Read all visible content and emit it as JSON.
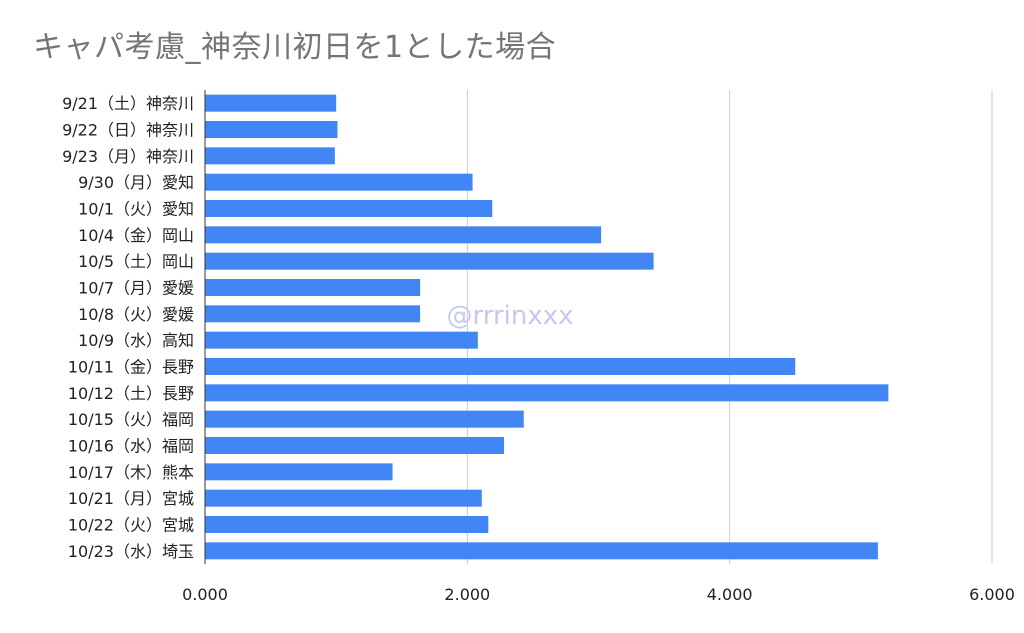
{
  "chart_data": {
    "type": "bar",
    "orientation": "horizontal",
    "title": "キャパ考慮_神奈川初日を1とした場合",
    "watermark": "@rrrinxxx",
    "categories": [
      "9/21（土）神奈川",
      "9/22（日）神奈川",
      "9/23（月）神奈川",
      "9/30（月）愛知",
      "10/1（火）愛知",
      "10/4（金）岡山",
      "10/5（土）岡山",
      "10/7（月）愛媛",
      "10/8（火）愛媛",
      "10/9（水）高知",
      "10/11（金）長野",
      "10/12（土）長野",
      "10/15（火）福岡",
      "10/16（水）福岡",
      "10/17（木）熊本",
      "10/21（月）宮城",
      "10/22（火）宮城",
      "10/23（水）埼玉"
    ],
    "values": [
      1.0,
      1.01,
      0.99,
      2.04,
      2.19,
      3.02,
      3.42,
      1.64,
      1.64,
      2.08,
      4.5,
      5.21,
      2.43,
      2.28,
      1.43,
      2.11,
      2.16,
      5.13
    ],
    "xlim": [
      0,
      6
    ],
    "xticks": [
      0,
      2,
      4,
      6
    ],
    "xtick_labels": [
      "0.000",
      "2.000",
      "4.000",
      "6.000"
    ],
    "grid": true,
    "bar_color": "#4285f4"
  }
}
